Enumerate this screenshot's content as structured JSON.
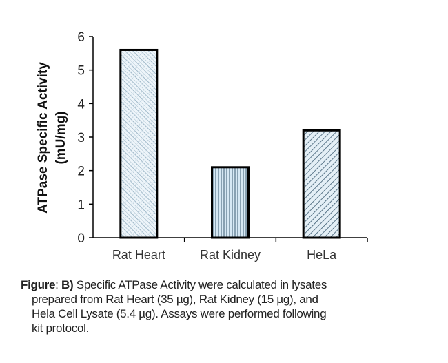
{
  "chart_data": {
    "type": "bar",
    "categories": [
      "Rat Heart",
      "Rat Kidney",
      "HeLa"
    ],
    "values": [
      5.6,
      2.1,
      3.2
    ],
    "title": "",
    "xlabel": "",
    "ylabel": "ATPase Specific Activity",
    "ylabel_unit": "(mU/mg)",
    "ylim": [
      0,
      6
    ],
    "yticks": [
      "0",
      "1",
      "2",
      "3",
      "4",
      "5",
      "6"
    ],
    "grid": false,
    "patterns": [
      "crosshatch-light",
      "vertical-lines",
      "diagonal-lines"
    ],
    "colors": {
      "fill": "#cfe3ef",
      "line": "#3a5a70",
      "border": "#000000"
    }
  },
  "caption": {
    "label": "Figure",
    "sep": ": ",
    "panel": "B)",
    "line1": " Specific ATPase Activity were calculated in lysates",
    "line2": "prepared from Rat Heart (35 µg), Rat Kidney (15 µg), and",
    "line3": "Hela Cell Lysate (5.4 µg). Assays were performed following",
    "line4": "kit protocol."
  }
}
